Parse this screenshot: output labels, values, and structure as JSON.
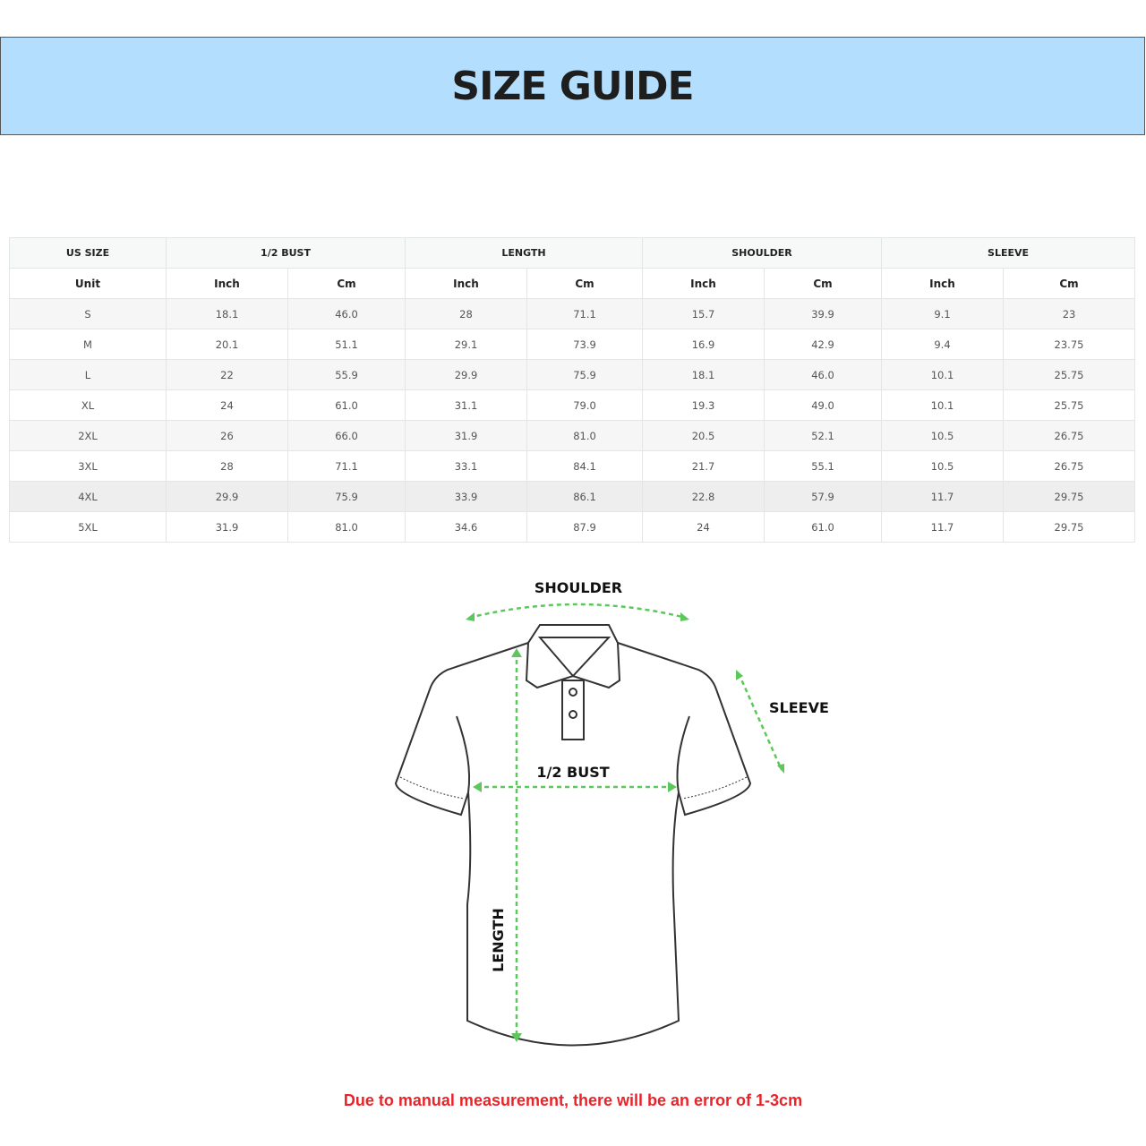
{
  "title": "SIZE GUIDE",
  "table": {
    "groups": [
      "US SIZE",
      "1/2 BUST",
      "LENGTH",
      "SHOULDER",
      "SLEEVE"
    ],
    "units": [
      "Unit",
      "Inch",
      "Cm",
      "Inch",
      "Cm",
      "Inch",
      "Cm",
      "Inch",
      "Cm"
    ],
    "rows": [
      [
        "S",
        "18.1",
        "46.0",
        "28",
        "71.1",
        "15.7",
        "39.9",
        "9.1",
        "23"
      ],
      [
        "M",
        "20.1",
        "51.1",
        "29.1",
        "73.9",
        "16.9",
        "42.9",
        "9.4",
        "23.75"
      ],
      [
        "L",
        "22",
        "55.9",
        "29.9",
        "75.9",
        "18.1",
        "46.0",
        "10.1",
        "25.75"
      ],
      [
        "XL",
        "24",
        "61.0",
        "31.1",
        "79.0",
        "19.3",
        "49.0",
        "10.1",
        "25.75"
      ],
      [
        "2XL",
        "26",
        "66.0",
        "31.9",
        "81.0",
        "20.5",
        "52.1",
        "10.5",
        "26.75"
      ],
      [
        "3XL",
        "28",
        "71.1",
        "33.1",
        "84.1",
        "21.7",
        "55.1",
        "10.5",
        "26.75"
      ],
      [
        "4XL",
        "29.9",
        "75.9",
        "33.9",
        "86.1",
        "22.8",
        "57.9",
        "11.7",
        "29.75"
      ],
      [
        "5XL",
        "31.9",
        "81.0",
        "34.6",
        "87.9",
        "24",
        "61.0",
        "11.7",
        "29.75"
      ]
    ]
  },
  "diagram": {
    "shoulder": "SHOULDER",
    "sleeve": "SLEEVE",
    "bust": "1/2 BUST",
    "length": "LENGTH",
    "arrow_color": "#5cc85c"
  },
  "note": "Due to manual measurement, there will be an error of 1-3cm"
}
